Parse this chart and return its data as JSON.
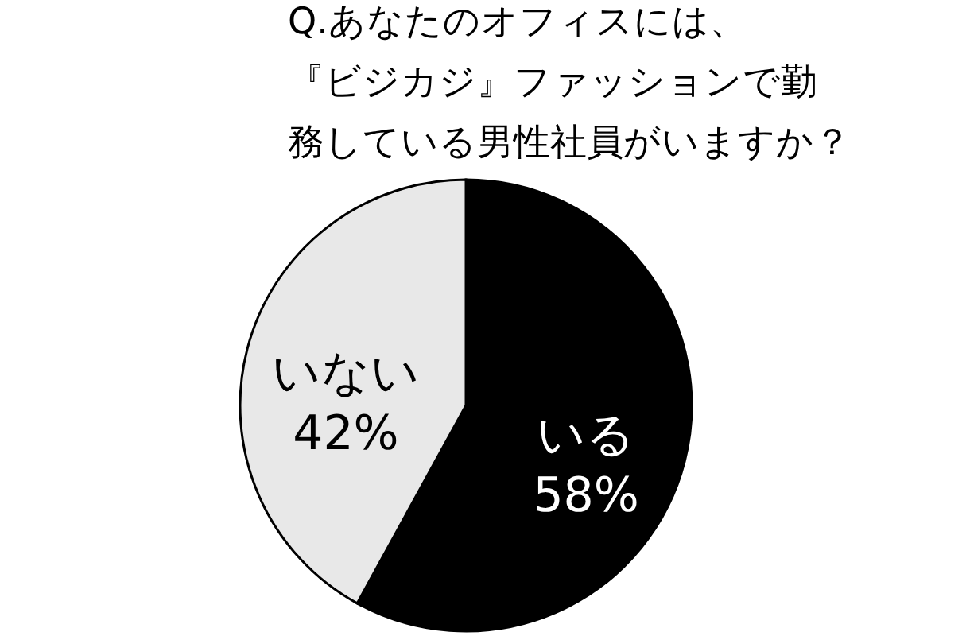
{
  "chart_data": {
    "type": "pie",
    "title": "Q.あなたのオフィスには、『ビジカジ』ファッションで勤務している男性社員がいますか？",
    "categories": [
      "いる",
      "いない"
    ],
    "values": [
      58,
      42
    ],
    "value_labels": [
      "58%",
      "42%"
    ],
    "colors": [
      "#000000",
      "#e8e8e8"
    ],
    "legend": false
  }
}
